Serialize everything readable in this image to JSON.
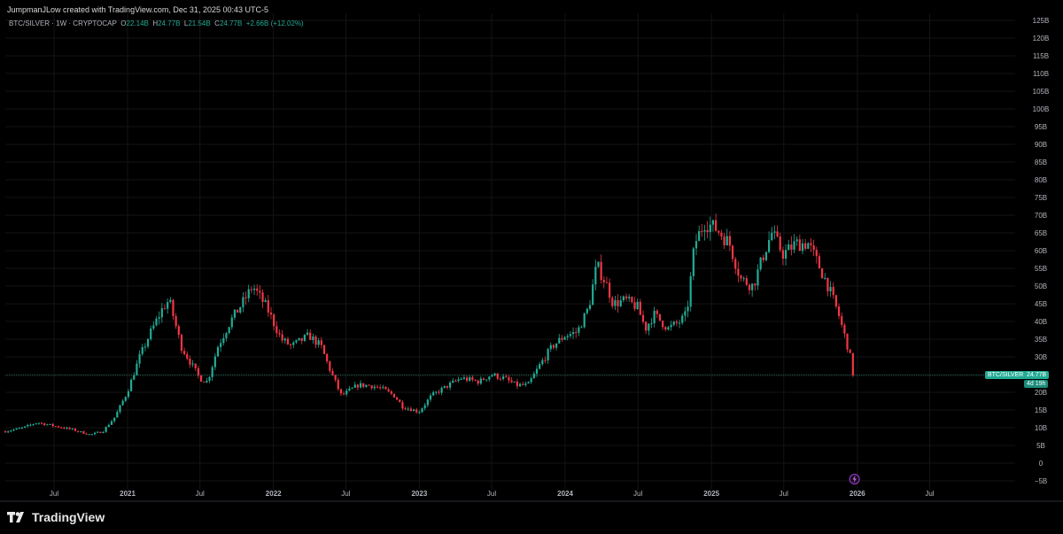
{
  "header": {
    "credit": "JumpmanJLow created with TradingView.com, Dec 31, 2025 00:43 UTC-5"
  },
  "legend": {
    "symbol": "BTC/SILVER · 1W · CRYPTOCAP",
    "o_label": "O",
    "o_value": "22.14B",
    "h_label": "H",
    "h_value": "24.77B",
    "l_label": "L",
    "l_value": "21.54B",
    "c_label": "C",
    "c_value": "24.77B",
    "change": "+2.66B (+12.02%)"
  },
  "price_tag": {
    "symbol": "BTC/SILVER",
    "value": "24.77B",
    "countdown": "4d 19h"
  },
  "branding": {
    "name": "TradingView"
  },
  "colors": {
    "up": "#22ab94",
    "down": "#f23645",
    "background": "#000000",
    "axis_text": "#b2b5be",
    "grid": "#141414",
    "current_line": "#1d5c50"
  },
  "chart_data": {
    "type": "candlestick",
    "title": "",
    "xlabel": "",
    "ylabel": "",
    "ylim": [
      -5,
      125
    ],
    "y_ticks": [
      {
        "value": 125,
        "label": "125B"
      },
      {
        "value": 120,
        "label": "120B"
      },
      {
        "value": 115,
        "label": "115B"
      },
      {
        "value": 110,
        "label": "110B"
      },
      {
        "value": 105,
        "label": "105B"
      },
      {
        "value": 100,
        "label": "100B"
      },
      {
        "value": 95,
        "label": "95B"
      },
      {
        "value": 90,
        "label": "90B"
      },
      {
        "value": 85,
        "label": "85B"
      },
      {
        "value": 80,
        "label": "80B"
      },
      {
        "value": 75,
        "label": "75B"
      },
      {
        "value": 70,
        "label": "70B"
      },
      {
        "value": 65,
        "label": "65B"
      },
      {
        "value": 60,
        "label": "60B"
      },
      {
        "value": 55,
        "label": "55B"
      },
      {
        "value": 50,
        "label": "50B"
      },
      {
        "value": 45,
        "label": "45B"
      },
      {
        "value": 40,
        "label": "40B"
      },
      {
        "value": 35,
        "label": "35B"
      },
      {
        "value": 30,
        "label": "30B"
      },
      {
        "value": 25,
        "label": "25B"
      },
      {
        "value": 20,
        "label": "20B"
      },
      {
        "value": 15,
        "label": "15B"
      },
      {
        "value": 10,
        "label": "10B"
      },
      {
        "value": 5,
        "label": "5B"
      },
      {
        "value": 0,
        "label": "0"
      },
      {
        "value": -5,
        "label": "−5B"
      }
    ],
    "x_range": [
      "2020-03-01",
      "2027-01-31"
    ],
    "x_ticks": [
      {
        "date": "2020-07-01",
        "label": "Jul"
      },
      {
        "date": "2021-01-01",
        "label": "2021",
        "bold": true
      },
      {
        "date": "2021-07-01",
        "label": "Jul"
      },
      {
        "date": "2022-01-01",
        "label": "2022",
        "bold": true
      },
      {
        "date": "2022-07-01",
        "label": "Jul"
      },
      {
        "date": "2023-01-01",
        "label": "2023",
        "bold": true
      },
      {
        "date": "2023-07-01",
        "label": "Jul"
      },
      {
        "date": "2024-01-01",
        "label": "2024",
        "bold": true
      },
      {
        "date": "2024-07-01",
        "label": "Jul"
      },
      {
        "date": "2025-01-01",
        "label": "2025",
        "bold": true
      },
      {
        "date": "2025-07-01",
        "label": "Jul"
      },
      {
        "date": "2026-01-01",
        "label": "2026",
        "bold": true
      },
      {
        "date": "2026-07-01",
        "label": "Jul"
      }
    ],
    "series": [
      {
        "name": "BTC/SILVER",
        "close_path": [
          [
            "2020-03-01",
            9
          ],
          [
            "2020-04-15",
            10
          ],
          [
            "2020-05-20",
            11.5
          ],
          [
            "2020-07-01",
            10.5
          ],
          [
            "2020-08-15",
            9.5
          ],
          [
            "2020-09-30",
            8
          ],
          [
            "2020-10-31",
            9
          ],
          [
            "2020-11-30",
            13
          ],
          [
            "2020-12-31",
            20
          ],
          [
            "2021-01-31",
            30
          ],
          [
            "2021-02-28",
            37
          ],
          [
            "2021-03-31",
            44
          ],
          [
            "2021-04-15",
            46
          ],
          [
            "2021-05-15",
            33
          ],
          [
            "2021-06-30",
            24
          ],
          [
            "2021-07-20",
            23
          ],
          [
            "2021-08-15",
            33
          ],
          [
            "2021-09-15",
            40
          ],
          [
            "2021-10-20",
            46
          ],
          [
            "2021-11-10",
            50
          ],
          [
            "2021-12-15",
            44
          ],
          [
            "2022-01-20",
            35
          ],
          [
            "2022-02-15",
            33
          ],
          [
            "2022-03-31",
            36
          ],
          [
            "2022-04-30",
            33
          ],
          [
            "2022-05-20",
            27
          ],
          [
            "2022-06-20",
            19
          ],
          [
            "2022-07-31",
            22
          ],
          [
            "2022-08-31",
            22
          ],
          [
            "2022-09-30",
            21
          ],
          [
            "2022-10-31",
            19
          ],
          [
            "2022-11-20",
            16
          ],
          [
            "2022-12-31",
            14.5
          ],
          [
            "2023-01-31",
            19
          ],
          [
            "2023-03-15",
            22
          ],
          [
            "2023-04-15",
            24
          ],
          [
            "2023-05-31",
            23
          ],
          [
            "2023-06-30",
            25
          ],
          [
            "2023-07-31",
            24
          ],
          [
            "2023-08-31",
            22
          ],
          [
            "2023-09-30",
            22
          ],
          [
            "2023-10-31",
            28
          ],
          [
            "2023-11-30",
            33
          ],
          [
            "2023-12-31",
            36
          ],
          [
            "2024-01-31",
            37
          ],
          [
            "2024-02-29",
            44
          ],
          [
            "2024-03-20",
            56
          ],
          [
            "2024-04-15",
            50
          ],
          [
            "2024-04-30",
            45
          ],
          [
            "2024-05-31",
            46
          ],
          [
            "2024-06-30",
            44
          ],
          [
            "2024-07-20",
            38
          ],
          [
            "2024-08-10",
            42
          ],
          [
            "2024-09-15",
            38
          ],
          [
            "2024-10-15",
            40
          ],
          [
            "2024-10-31",
            42
          ],
          [
            "2024-11-20",
            62
          ],
          [
            "2024-12-15",
            68
          ],
          [
            "2025-01-15",
            66
          ],
          [
            "2025-02-15",
            62
          ],
          [
            "2025-03-15",
            52
          ],
          [
            "2025-04-15",
            50
          ],
          [
            "2025-05-15",
            60
          ],
          [
            "2025-06-01",
            65
          ],
          [
            "2025-06-30",
            59
          ],
          [
            "2025-07-31",
            62
          ],
          [
            "2025-08-31",
            62
          ],
          [
            "2025-09-30",
            55
          ],
          [
            "2025-10-20",
            50
          ],
          [
            "2025-11-15",
            42
          ],
          [
            "2025-12-10",
            32
          ],
          [
            "2025-12-25",
            24.77
          ]
        ]
      }
    ],
    "current_value": 24.77
  }
}
